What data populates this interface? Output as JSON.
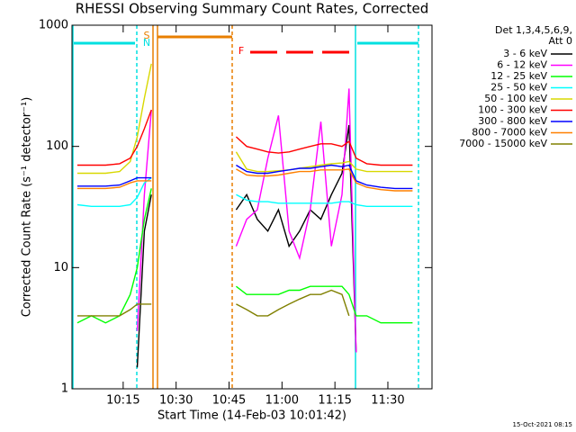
{
  "chart_data": {
    "type": "line",
    "title": "RHESSI Observing Summary Count Rates, Corrected",
    "x_label": "Start Time (14-Feb-03 10:01:42)",
    "y_label": "Corrected Count Rate (s⁻¹ detector⁻¹)",
    "legend_title": [
      "Det 1,3,4,5,6,9,",
      "Att 0"
    ],
    "timestamp": "15-Oct-2021 08:15",
    "annotations": [
      {
        "text": "S",
        "color": "#e87f00"
      },
      {
        "text": "N",
        "color": "#00e0e0"
      },
      {
        "text": "F",
        "color": "#ff0000"
      }
    ],
    "log_y": true,
    "legend": "outside-right",
    "xlim": [
      "10:00:30",
      "11:42:30"
    ],
    "xticks": [
      "10:15",
      "10:30",
      "10:45",
      "11:00",
      "11:15",
      "11:30"
    ],
    "ylim": [
      1,
      1000
    ],
    "yticks": [
      1,
      10,
      100,
      1000
    ],
    "x": [
      "10:02",
      "10:06",
      "10:10",
      "10:14",
      "10:17",
      "10:19",
      "10:21",
      "10:23",
      "10:35",
      "10:47",
      "10:50",
      "10:53",
      "10:56",
      "10:59",
      "11:02",
      "11:05",
      "11:08",
      "11:11",
      "11:14",
      "11:17",
      "11:19",
      "11:21",
      "11:24",
      "11:28",
      "11:32",
      "11:37"
    ],
    "series": [
      {
        "name": "3 - 6 keV",
        "color": "#000000",
        "values": [
          null,
          null,
          null,
          null,
          null,
          1.5,
          20,
          40,
          null,
          30,
          40,
          25,
          20,
          30,
          15,
          20,
          30,
          25,
          40,
          60,
          150,
          2,
          null,
          null,
          null,
          null
        ]
      },
      {
        "name": "6 - 12 keV",
        "color": "#ff00ff",
        "values": [
          null,
          null,
          null,
          null,
          null,
          3,
          40,
          200,
          null,
          15,
          25,
          30,
          80,
          180,
          20,
          12,
          30,
          160,
          15,
          40,
          300,
          2,
          null,
          null,
          null,
          null
        ]
      },
      {
        "name": "12 - 25 keV",
        "color": "#00ff00",
        "values": [
          3.5,
          4,
          3.5,
          4,
          6,
          10,
          25,
          45,
          null,
          7,
          6,
          6,
          6,
          6,
          6.5,
          6.5,
          7,
          7,
          7,
          7,
          6,
          4,
          4,
          3.5,
          3.5,
          3.5
        ]
      },
      {
        "name": "25 - 50 keV",
        "color": "#00ffff",
        "values": [
          33,
          32,
          32,
          32,
          33,
          38,
          50,
          55,
          null,
          40,
          36,
          35,
          35,
          34,
          34,
          34,
          34,
          34,
          34,
          35,
          35,
          33,
          32,
          32,
          32,
          32
        ]
      },
      {
        "name": "50 - 100 keV",
        "color": "#d8d800",
        "values": [
          60,
          60,
          60,
          62,
          75,
          120,
          250,
          480,
          null,
          90,
          65,
          62,
          62,
          63,
          64,
          66,
          68,
          70,
          72,
          73,
          75,
          65,
          62,
          62,
          62,
          62
        ]
      },
      {
        "name": "100 - 300 keV",
        "color": "#ff0000",
        "values": [
          70,
          70,
          70,
          72,
          80,
          100,
          140,
          200,
          null,
          120,
          100,
          95,
          90,
          88,
          90,
          95,
          100,
          105,
          105,
          100,
          110,
          80,
          72,
          70,
          70,
          70
        ]
      },
      {
        "name": "300 - 800 keV",
        "color": "#0000ff",
        "values": [
          47,
          47,
          47,
          48,
          52,
          55,
          55,
          55,
          null,
          70,
          62,
          60,
          60,
          62,
          64,
          66,
          66,
          68,
          70,
          68,
          70,
          52,
          48,
          46,
          45,
          45
        ]
      },
      {
        "name": "800 - 7000 keV",
        "color": "#ff8000",
        "values": [
          45,
          45,
          45,
          46,
          50,
          52,
          52,
          52,
          null,
          65,
          58,
          57,
          57,
          58,
          60,
          62,
          62,
          64,
          64,
          64,
          65,
          50,
          46,
          44,
          43,
          43
        ]
      },
      {
        "name": "7000 - 15000 keV",
        "color": "#808000",
        "values": [
          4,
          4,
          4,
          4,
          4.5,
          5,
          5,
          5,
          null,
          5,
          4.5,
          4,
          4,
          4.5,
          5,
          5.5,
          6,
          6,
          6.5,
          6,
          4,
          null,
          null,
          null,
          null,
          null
        ]
      }
    ]
  }
}
